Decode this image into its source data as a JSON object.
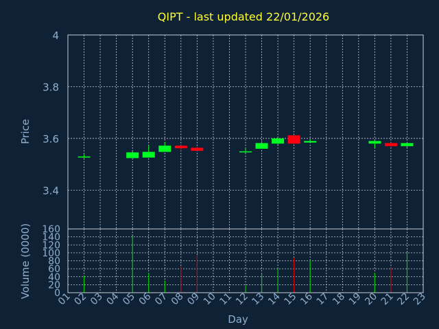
{
  "title": "QIPT - last updated 22/01/2026",
  "colors": {
    "up": "#00ff22",
    "down": "#ff0011",
    "up_volume": "#00cc00",
    "down_volume": "#dd0000",
    "background": "#0f2135",
    "text": "#8fb0d0",
    "title": "#ffff33"
  },
  "chart_data": [
    {
      "type": "candlestick",
      "title": "QIPT - last updated 22/01/2026",
      "ylabel": "Price",
      "ylim": [
        3.25,
        4.0
      ],
      "yticks": [
        3.4,
        3.6,
        3.8,
        4.0
      ],
      "ytick_labels": [
        "3.4",
        "3.6",
        "3.8",
        "4"
      ],
      "grid": true,
      "candles": [
        {
          "day": "02",
          "open": 3.527,
          "high": 3.538,
          "low": 3.524,
          "close": 3.53
        },
        {
          "day": "05",
          "open": 3.524,
          "high": 3.55,
          "low": 3.524,
          "close": 3.546
        },
        {
          "day": "06",
          "open": 3.526,
          "high": 3.572,
          "low": 3.526,
          "close": 3.548
        },
        {
          "day": "07",
          "open": 3.548,
          "high": 3.586,
          "low": 3.548,
          "close": 3.572
        },
        {
          "day": "08",
          "open": 3.572,
          "high": 3.574,
          "low": 3.552,
          "close": 3.562
        },
        {
          "day": "09",
          "open": 3.564,
          "high": 3.568,
          "low": 3.55,
          "close": 3.552
        },
        {
          "day": "12",
          "open": 3.546,
          "high": 3.562,
          "low": 3.544,
          "close": 3.55
        },
        {
          "day": "13",
          "open": 3.56,
          "high": 3.59,
          "low": 3.56,
          "close": 3.582
        },
        {
          "day": "14",
          "open": 3.58,
          "high": 3.604,
          "low": 3.576,
          "close": 3.6
        },
        {
          "day": "15",
          "open": 3.612,
          "high": 3.612,
          "low": 3.578,
          "close": 3.58
        },
        {
          "day": "16",
          "open": 3.584,
          "high": 3.596,
          "low": 3.582,
          "close": 3.59
        },
        {
          "day": "20",
          "open": 3.58,
          "high": 3.592,
          "low": 3.562,
          "close": 3.59
        },
        {
          "day": "21",
          "open": 3.582,
          "high": 3.584,
          "low": 3.568,
          "close": 3.57
        },
        {
          "day": "22",
          "open": 3.57,
          "high": 3.586,
          "low": 3.562,
          "close": 3.582
        }
      ]
    },
    {
      "type": "bar",
      "ylabel": "Volume (0000)",
      "xlabel": "Day",
      "ylim": [
        0,
        160
      ],
      "yticks": [
        0,
        20,
        40,
        60,
        80,
        100,
        120,
        140,
        160
      ],
      "categories": [
        "01",
        "02",
        "03",
        "04",
        "05",
        "06",
        "07",
        "08",
        "09",
        "10",
        "11",
        "12",
        "13",
        "14",
        "15",
        "16",
        "17",
        "18",
        "19",
        "20",
        "21",
        "22",
        "23"
      ],
      "grid": true,
      "bars": [
        {
          "day": "02",
          "value": 42,
          "direction": "up"
        },
        {
          "day": "05",
          "value": 143,
          "direction": "up"
        },
        {
          "day": "06",
          "value": 50,
          "direction": "up"
        },
        {
          "day": "07",
          "value": 30,
          "direction": "up"
        },
        {
          "day": "08",
          "value": 66,
          "direction": "down"
        },
        {
          "day": "09",
          "value": 95,
          "direction": "down"
        },
        {
          "day": "12",
          "value": 18,
          "direction": "up"
        },
        {
          "day": "13",
          "value": 48,
          "direction": "up"
        },
        {
          "day": "14",
          "value": 62,
          "direction": "up"
        },
        {
          "day": "15",
          "value": 87,
          "direction": "down"
        },
        {
          "day": "16",
          "value": 82,
          "direction": "up"
        },
        {
          "day": "20",
          "value": 50,
          "direction": "up"
        },
        {
          "day": "21",
          "value": 63,
          "direction": "down"
        },
        {
          "day": "22",
          "value": 101,
          "direction": "up"
        }
      ]
    }
  ]
}
